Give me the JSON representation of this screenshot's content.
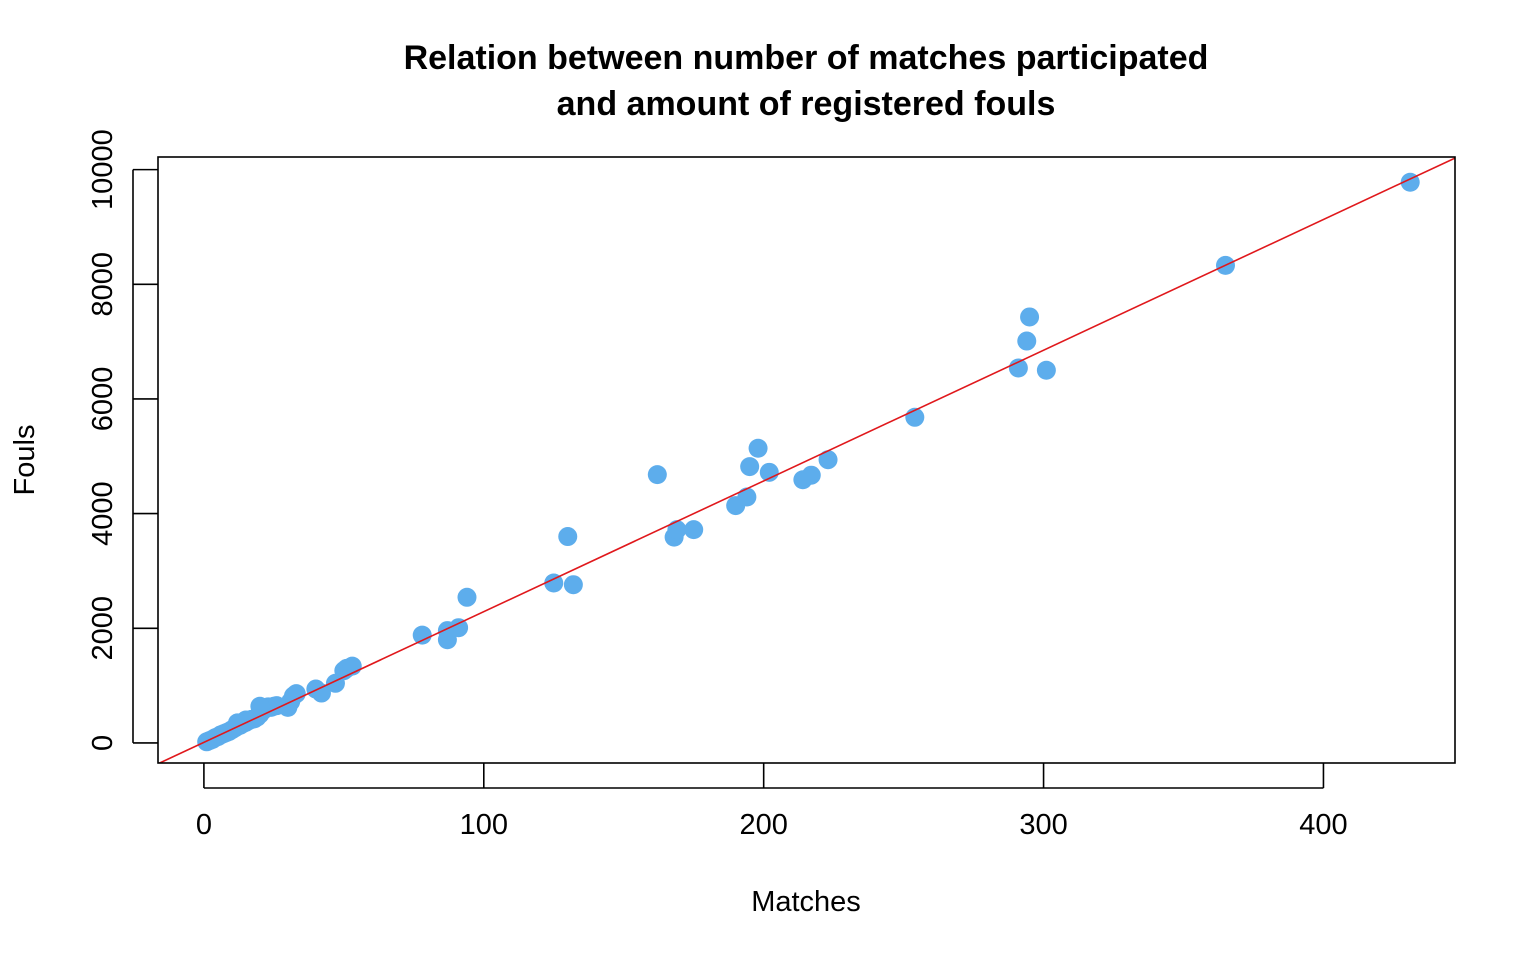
{
  "chart_data": {
    "type": "scatter",
    "title": [
      "Relation between number of matches participated",
      "and amount of registered fouls"
    ],
    "xlabel": "Matches",
    "ylabel": "Fouls",
    "xlim": [
      -16.4,
      447
    ],
    "ylim": [
      -350,
      10220
    ],
    "xticks": [
      0,
      100,
      200,
      300,
      400
    ],
    "yticks": [
      0,
      2000,
      4000,
      6000,
      8000,
      10000
    ],
    "point_color": "#5DADEC",
    "line_color": "#E0181C",
    "regression_line": {
      "intercept": 10,
      "slope": 22.8
    },
    "points": [
      [
        1,
        20
      ],
      [
        2,
        40
      ],
      [
        3,
        60
      ],
      [
        4,
        90
      ],
      [
        5,
        110
      ],
      [
        6,
        140
      ],
      [
        7,
        160
      ],
      [
        8,
        180
      ],
      [
        9,
        200
      ],
      [
        10,
        230
      ],
      [
        11,
        260
      ],
      [
        12,
        290
      ],
      [
        13,
        310
      ],
      [
        14,
        340
      ],
      [
        15,
        360
      ],
      [
        16,
        390
      ],
      [
        17,
        410
      ],
      [
        18,
        420
      ],
      [
        19,
        450
      ],
      [
        20,
        500
      ],
      [
        21,
        560
      ],
      [
        22,
        600
      ],
      [
        23,
        630
      ],
      [
        24,
        620
      ],
      [
        25,
        640
      ],
      [
        26,
        650
      ],
      [
        20,
        640
      ],
      [
        15,
        400
      ],
      [
        12,
        350
      ],
      [
        30,
        620
      ],
      [
        31,
        720
      ],
      [
        32,
        820
      ],
      [
        33,
        860
      ],
      [
        40,
        940
      ],
      [
        42,
        870
      ],
      [
        47,
        1040
      ],
      [
        50,
        1260
      ],
      [
        51,
        1300
      ],
      [
        53,
        1340
      ],
      [
        78,
        1880
      ],
      [
        87,
        1800
      ],
      [
        87,
        1960
      ],
      [
        91,
        2010
      ],
      [
        94,
        2540
      ],
      [
        125,
        2790
      ],
      [
        130,
        3600
      ],
      [
        132,
        2760
      ],
      [
        162,
        4680
      ],
      [
        168,
        3590
      ],
      [
        169,
        3720
      ],
      [
        175,
        3720
      ],
      [
        190,
        4140
      ],
      [
        194,
        4290
      ],
      [
        195,
        4820
      ],
      [
        198,
        5140
      ],
      [
        202,
        4720
      ],
      [
        214,
        4590
      ],
      [
        217,
        4670
      ],
      [
        223,
        4940
      ],
      [
        254,
        5680
      ],
      [
        291,
        6540
      ],
      [
        294,
        7010
      ],
      [
        295,
        7430
      ],
      [
        301,
        6500
      ],
      [
        365,
        8330
      ],
      [
        431,
        9780
      ]
    ]
  }
}
